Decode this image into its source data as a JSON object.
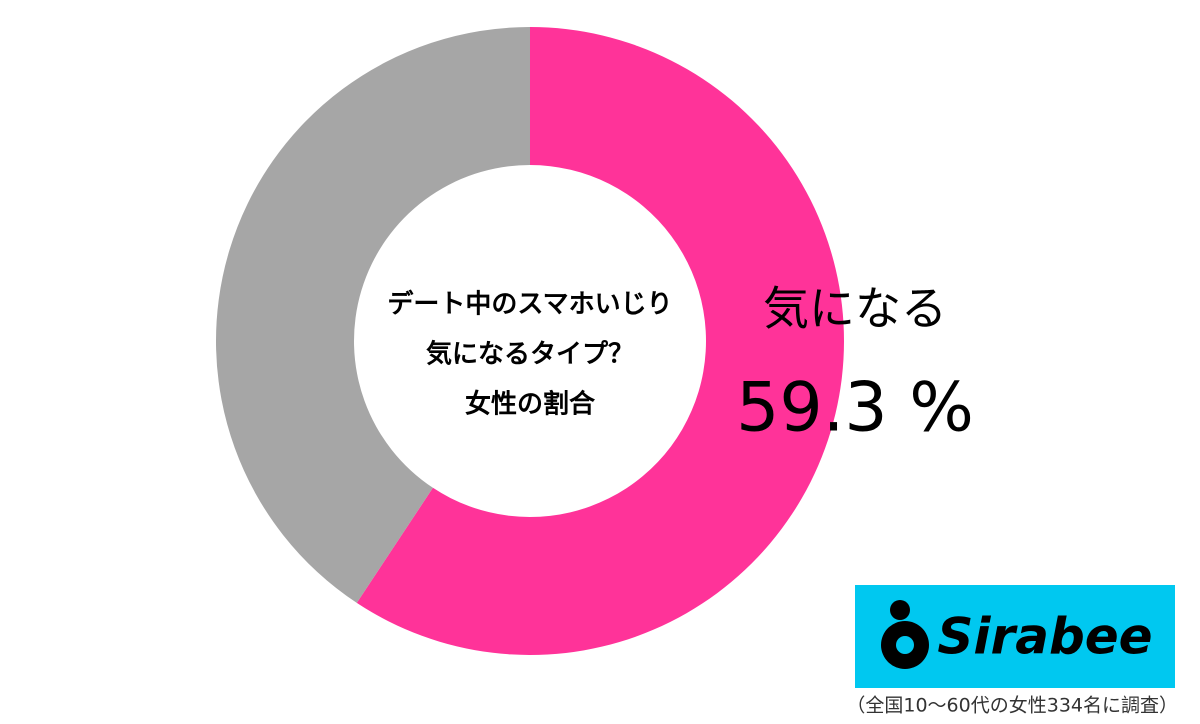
{
  "chart_data": {
    "type": "donut",
    "title_lines": [
      "デート中のスマホいじり",
      "気になるタイプ？",
      "女性の割合"
    ],
    "categories": [
      "気になる",
      null
    ],
    "values": [
      59.3,
      40.7
    ],
    "value_labels": [
      "59.3 %",
      null
    ],
    "colors": [
      "#ff3399",
      "#a6a6a6"
    ]
  },
  "logo": {
    "text": "Sirabee"
  },
  "note": "（全国10～60代の女性334名に調査）"
}
